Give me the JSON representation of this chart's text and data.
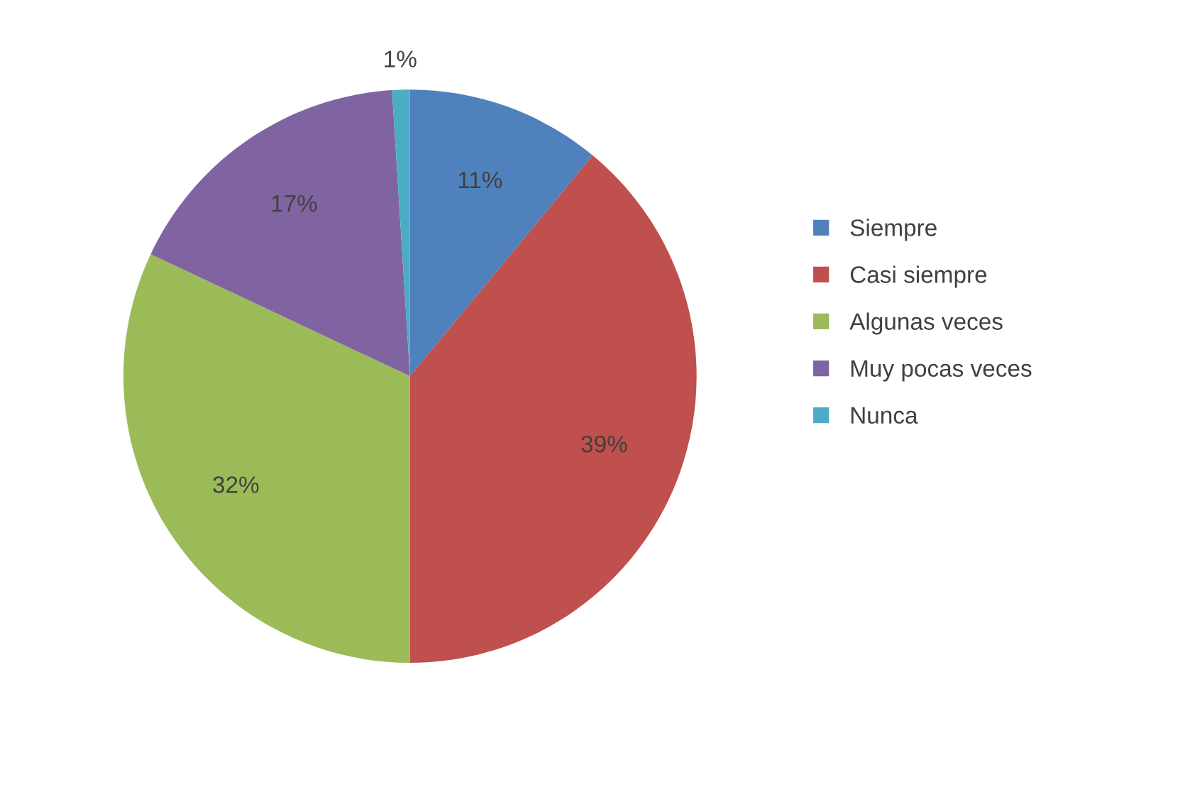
{
  "chart_data": {
    "type": "pie",
    "categories": [
      "Siempre",
      "Casi siempre",
      "Algunas veces",
      "Muy pocas veces",
      "Nunca"
    ],
    "values": [
      11,
      39,
      32,
      17,
      1
    ],
    "colors": [
      "#4f81bd",
      "#c0504d",
      "#9bbb59",
      "#8064a2",
      "#4bacc6"
    ],
    "value_labels": [
      "11%",
      "39%",
      "32%",
      "17%",
      "1%"
    ],
    "legend": "right"
  }
}
